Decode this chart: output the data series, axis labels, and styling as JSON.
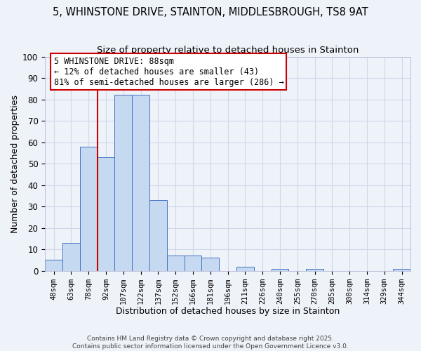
{
  "title": "5, WHINSTONE DRIVE, STAINTON, MIDDLESBROUGH, TS8 9AT",
  "subtitle": "Size of property relative to detached houses in Stainton",
  "bar_values": [
    5,
    13,
    58,
    53,
    82,
    82,
    33,
    7,
    7,
    6,
    0,
    2,
    0,
    1,
    0,
    1,
    0,
    0,
    0,
    0,
    1
  ],
  "bin_labels": [
    "48sqm",
    "63sqm",
    "78sqm",
    "92sqm",
    "107sqm",
    "122sqm",
    "137sqm",
    "152sqm",
    "166sqm",
    "181sqm",
    "196sqm",
    "211sqm",
    "226sqm",
    "240sqm",
    "255sqm",
    "270sqm",
    "285sqm",
    "300sqm",
    "314sqm",
    "329sqm",
    "344sqm"
  ],
  "bar_color": "#c5d9f0",
  "bar_edge_color": "#4472c4",
  "grid_color": "#d0d8e8",
  "bg_color": "#eef2f9",
  "vline_x": 2.5,
  "vline_color": "#cc0000",
  "annotation_text": "5 WHINSTONE DRIVE: 88sqm\n← 12% of detached houses are smaller (43)\n81% of semi-detached houses are larger (286) →",
  "annotation_box_color": "#cc0000",
  "xlabel": "Distribution of detached houses by size in Stainton",
  "ylabel": "Number of detached properties",
  "ylim": [
    0,
    100
  ],
  "yticks": [
    0,
    10,
    20,
    30,
    40,
    50,
    60,
    70,
    80,
    90,
    100
  ],
  "footnote1": "Contains HM Land Registry data © Crown copyright and database right 2025.",
  "footnote2": "Contains public sector information licensed under the Open Government Licence v3.0.",
  "title_fontsize": 10.5,
  "subtitle_fontsize": 9.5,
  "annotation_fontsize": 8.5
}
